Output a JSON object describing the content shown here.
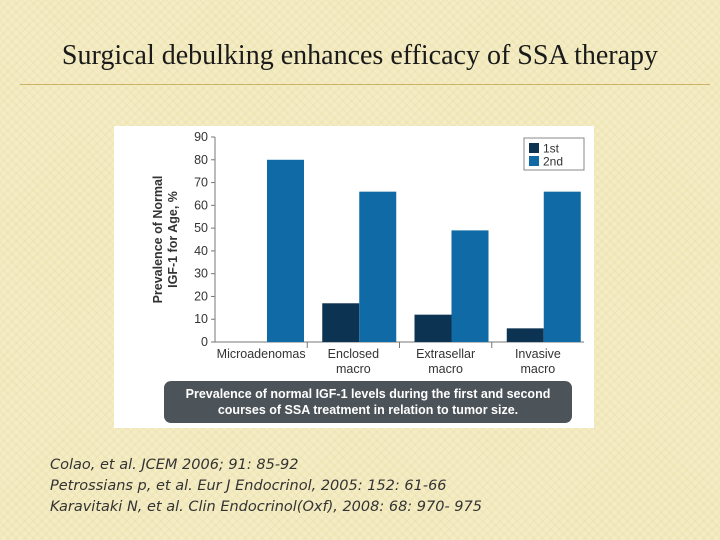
{
  "slide": {
    "title": "Surgical debulking enhances efficacy of SSA therapy"
  },
  "chart_data": {
    "type": "bar",
    "ylabel_line1": "Prevalence of Normal",
    "ylabel_line2": "IGF-1 for Age, %",
    "ylim": [
      0,
      90
    ],
    "yticks": [
      0,
      10,
      20,
      30,
      40,
      50,
      60,
      70,
      80,
      90
    ],
    "categories": [
      {
        "line1": "Microadenomas",
        "line2": ""
      },
      {
        "line1": "Enclosed",
        "line2": "macro"
      },
      {
        "line1": "Extrasellar",
        "line2": "macro"
      },
      {
        "line1": "Invasive",
        "line2": "macro"
      }
    ],
    "series": [
      {
        "name": "1st",
        "color": "#0d3352",
        "values": [
          0,
          17,
          12,
          6
        ]
      },
      {
        "name": "2nd",
        "color": "#0f6aa6",
        "values": [
          80,
          66,
          49,
          66
        ]
      }
    ],
    "legend_position": "top-right",
    "caption_line1": "Prevalence of normal IGF-1 levels during the first and second",
    "caption_line2": "courses of SSA treatment in relation to tumor size."
  },
  "references": [
    "Colao, et al. JCEM 2006; 91: 85-92",
    "Petrossians p, et al. Eur J Endocrinol, 2005: 152: 61-66",
    "Karavitaki  N, et al. Clin Endocrinol(Oxf), 2008: 68: 970- 975"
  ]
}
